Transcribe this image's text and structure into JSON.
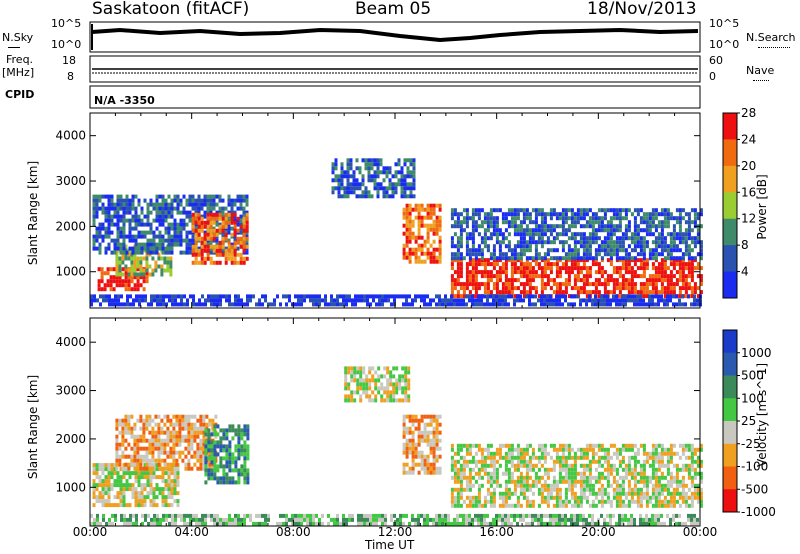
{
  "header": {
    "station": "Saskatoon (fitACF)",
    "beam": "Beam 05",
    "date": "18/Nov/2013"
  },
  "strip_labels": {
    "nsky": "N.Sky",
    "nsky_ticks": [
      "10^5",
      "10^0"
    ],
    "nsearch": "N.Search",
    "nsearch_ticks": [
      "10^5",
      "10^0"
    ],
    "freq": "Freq.",
    "freq_unit": "[MHz]",
    "freq_ticks": [
      "18",
      "8"
    ],
    "nave": "Nave",
    "nave_ticks": [
      "60",
      "0"
    ],
    "cpid": "CPID",
    "cpid_value": "N/A -3350"
  },
  "chart_data": [
    {
      "type": "heatmap",
      "name": "power",
      "ylabel": "Slant Range [km]",
      "y_ticks": [
        "1000",
        "2000",
        "3000",
        "4000"
      ],
      "ylim": [
        200,
        4500
      ],
      "colorbar_label": "Power [dB]",
      "colorbar_ticks": [
        "4",
        "8",
        "12",
        "16",
        "20",
        "24",
        "28"
      ],
      "colorbar_colors": [
        "#1a2cf0",
        "#2a52b0",
        "#3f8a6a",
        "#9acd32",
        "#f0a020",
        "#f06a10",
        "#ee1010"
      ],
      "regions": [
        {
          "t0": 0.3,
          "t1": 2.2,
          "r0": 650,
          "r1": 1100,
          "level": 6
        },
        {
          "t0": 1.0,
          "t1": 3.2,
          "r0": 950,
          "r1": 1600,
          "level": 3
        },
        {
          "t0": 0.1,
          "t1": 6.2,
          "r0": 1400,
          "r1": 2700,
          "level": 1
        },
        {
          "t0": 4.0,
          "t1": 6.2,
          "r0": 1200,
          "r1": 2300,
          "level": 5
        },
        {
          "t0": 9.5,
          "t1": 12.8,
          "r0": 2700,
          "r1": 3500,
          "level": 1
        },
        {
          "t0": 12.3,
          "t1": 13.8,
          "r0": 1200,
          "r1": 2500,
          "level": 5
        },
        {
          "t0": 14.2,
          "t1": 24.0,
          "r0": 500,
          "r1": 1300,
          "level": 6
        },
        {
          "t0": 14.2,
          "t1": 24.0,
          "r0": 1300,
          "r1": 2400,
          "level": 1
        },
        {
          "t0": 0.0,
          "t1": 24.0,
          "r0": 250,
          "r1": 500,
          "level": 0
        }
      ]
    },
    {
      "type": "heatmap",
      "name": "velocity",
      "ylabel": "Slant Range [km]",
      "y_ticks": [
        "1000",
        "2000",
        "3000",
        "4000"
      ],
      "ylim": [
        200,
        4500
      ],
      "colorbar_label": "Velocity [m s^-1]",
      "colorbar_ticks": [
        "1000",
        "500",
        "100",
        "25",
        "-25",
        "-100",
        "-500",
        "-1000"
      ],
      "colorbar_colors": [
        "#1a3cc8",
        "#2a5ab0",
        "#3a8a5a",
        "#44c844",
        "#c8c8c0",
        "#f0a020",
        "#f06010",
        "#ee1010"
      ],
      "regions": [
        {
          "t0": 0.1,
          "t1": 3.5,
          "r0": 600,
          "r1": 1500,
          "level": 4
        },
        {
          "t0": 1.0,
          "t1": 5.0,
          "r0": 1400,
          "r1": 2500,
          "level": 5
        },
        {
          "t0": 4.5,
          "t1": 6.2,
          "r0": 1100,
          "r1": 2300,
          "level": 2
        },
        {
          "t0": 10.0,
          "t1": 12.5,
          "r0": 2800,
          "r1": 3500,
          "level": 4
        },
        {
          "t0": 12.3,
          "t1": 13.8,
          "r0": 1300,
          "r1": 2500,
          "level": 5
        },
        {
          "t0": 14.2,
          "t1": 24.0,
          "r0": 600,
          "r1": 1900,
          "level": 4
        },
        {
          "t0": 0.0,
          "t1": 24.0,
          "r0": 250,
          "r1": 450,
          "level": 3
        }
      ]
    }
  ],
  "time_axis": {
    "label": "Time UT",
    "ticks": [
      "00:00",
      "04:00",
      "08:00",
      "12:00",
      "16:00",
      "20:00",
      "00:00"
    ]
  }
}
